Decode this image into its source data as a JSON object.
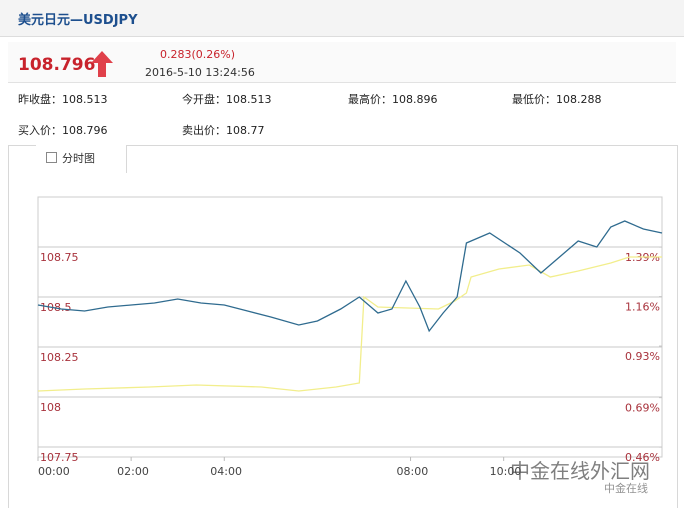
{
  "header": {
    "title": "美元日元—USDJPY"
  },
  "quote": {
    "price": "108.796",
    "change": "0.283(0.26%)",
    "datetime": "2016-5-10 13:24:56"
  },
  "stats": [
    {
      "label": "昨收盘：",
      "value": "108.513"
    },
    {
      "label": "今开盘：",
      "value": "108.513"
    },
    {
      "label": "最高价：",
      "value": "108.896"
    },
    {
      "label": "最低价：",
      "value": "108.288"
    },
    {
      "label": "买入价：",
      "value": "108.796"
    },
    {
      "label": "卖出价：",
      "value": "108.77"
    }
  ],
  "tab": {
    "label": "分时图"
  },
  "watermark": {
    "main": "中金在线外汇网",
    "sub": "中金在线"
  },
  "chart_data": {
    "type": "line",
    "xlim": [
      0,
      13.4
    ],
    "xticks": [
      {
        "value": 0,
        "label": "00:00"
      },
      {
        "value": 2,
        "label": "02:00"
      },
      {
        "value": 4,
        "label": "04:00"
      },
      {
        "value": 8,
        "label": "08:00"
      },
      {
        "value": 10,
        "label": "10:00"
      }
    ],
    "ylim": [
      107.7,
      109.0
    ],
    "yticks": [
      107.75,
      108,
      108.25,
      108.5,
      108.75
    ],
    "y2lim": [
      0.414,
      1.623
    ],
    "y2ticks": [
      {
        "value": 0.46,
        "label": "0.46%"
      },
      {
        "value": 0.69,
        "label": "0.69%"
      },
      {
        "value": 0.93,
        "label": "0.93%"
      },
      {
        "value": 1.16,
        "label": "1.16%"
      },
      {
        "value": 1.39,
        "label": "1.39%"
      }
    ],
    "grid": true,
    "series": [
      {
        "color": "#2f6b8f",
        "x": [
          0,
          0.5,
          1.0,
          1.5,
          2.0,
          2.5,
          3.0,
          3.5,
          4.0,
          4.5,
          5.0,
          5.6,
          6.0,
          6.5,
          6.9,
          7.3,
          7.6,
          7.9,
          8.2,
          8.4,
          8.7,
          9.0,
          9.2,
          9.7,
          10.35,
          10.8,
          11.2,
          11.6,
          12.0,
          12.3,
          12.6,
          13.0,
          13.4
        ],
        "values": [
          108.46,
          108.44,
          108.43,
          108.45,
          108.46,
          108.47,
          108.49,
          108.47,
          108.46,
          108.43,
          108.4,
          108.36,
          108.38,
          108.44,
          108.5,
          108.42,
          108.44,
          108.58,
          108.45,
          108.33,
          108.42,
          108.5,
          108.77,
          108.82,
          108.72,
          108.62,
          108.7,
          108.78,
          108.75,
          108.85,
          108.88,
          108.84,
          108.82
        ]
      },
      {
        "color": "#f2ee8c",
        "x": [
          0,
          1.0,
          2.4,
          3.4,
          4.8,
          5.6,
          6.4,
          6.9,
          7.0,
          7.3,
          8.6,
          8.95,
          9.2,
          9.3,
          9.9,
          10.55,
          11.0,
          11.6,
          12.3,
          12.7,
          13.4
        ],
        "values": [
          108.03,
          108.04,
          108.05,
          108.06,
          108.05,
          108.03,
          108.05,
          108.07,
          108.5,
          108.45,
          108.44,
          108.48,
          108.52,
          108.6,
          108.64,
          108.66,
          108.6,
          108.63,
          108.67,
          108.7,
          108.7
        ]
      }
    ]
  }
}
